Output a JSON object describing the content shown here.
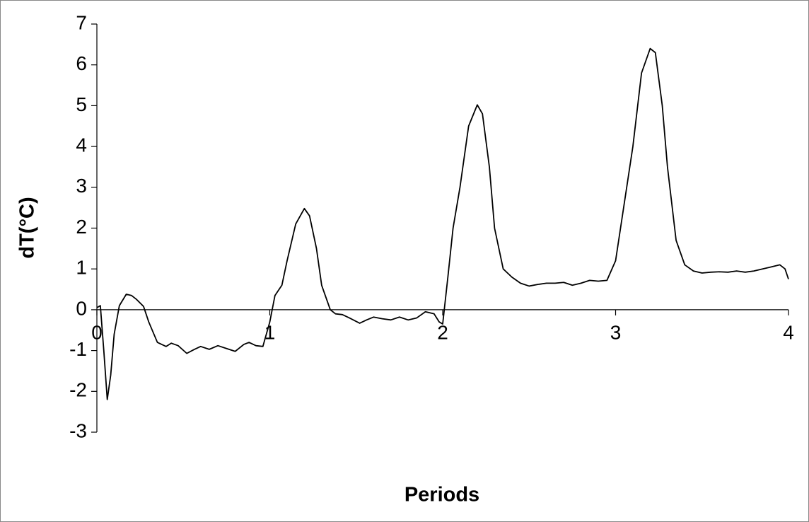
{
  "chart_data": {
    "type": "line",
    "x_label": "Periods",
    "y_label": "dT(°C)",
    "xlim": [
      0,
      4
    ],
    "xticks": [
      0,
      1,
      2,
      3,
      4
    ],
    "ylim": [
      -3,
      7
    ],
    "yticks": [
      -3,
      -2,
      -1,
      0,
      1,
      2,
      3,
      4,
      5,
      6,
      7
    ],
    "grid": false,
    "series": [
      {
        "color": "#000000",
        "x": [
          0,
          0.02,
          0.04,
          0.06,
          0.08,
          0.1,
          0.13,
          0.17,
          0.2,
          0.23,
          0.27,
          0.3,
          0.35,
          0.4,
          0.43,
          0.47,
          0.52,
          0.56,
          0.6,
          0.65,
          0.7,
          0.75,
          0.8,
          0.85,
          0.88,
          0.92,
          0.96,
          1.0,
          1.03,
          1.07,
          1.1,
          1.15,
          1.2,
          1.23,
          1.27,
          1.3,
          1.35,
          1.38,
          1.42,
          1.46,
          1.52,
          1.56,
          1.6,
          1.65,
          1.7,
          1.75,
          1.8,
          1.85,
          1.9,
          1.95,
          1.98,
          2.0,
          2.03,
          2.06,
          2.1,
          2.15,
          2.2,
          2.23,
          2.27,
          2.3,
          2.35,
          2.4,
          2.45,
          2.5,
          2.55,
          2.6,
          2.65,
          2.7,
          2.75,
          2.8,
          2.85,
          2.9,
          2.95,
          3.0,
          3.05,
          3.1,
          3.15,
          3.2,
          3.23,
          3.27,
          3.3,
          3.35,
          3.4,
          3.45,
          3.5,
          3.55,
          3.6,
          3.65,
          3.7,
          3.75,
          3.8,
          3.85,
          3.9,
          3.95,
          3.98,
          4.0
        ],
        "values": [
          0.05,
          0.1,
          -1.0,
          -2.2,
          -1.6,
          -0.6,
          0.1,
          0.38,
          0.35,
          0.25,
          0.08,
          -0.3,
          -0.8,
          -0.9,
          -0.82,
          -0.88,
          -1.07,
          -0.98,
          -0.9,
          -0.97,
          -0.88,
          -0.95,
          -1.02,
          -0.85,
          -0.8,
          -0.88,
          -0.9,
          -0.3,
          0.35,
          0.6,
          1.2,
          2.1,
          2.48,
          2.3,
          1.5,
          0.6,
          0.0,
          -0.1,
          -0.12,
          -0.2,
          -0.33,
          -0.25,
          -0.18,
          -0.22,
          -0.25,
          -0.18,
          -0.25,
          -0.2,
          -0.05,
          -0.1,
          -0.3,
          -0.35,
          0.8,
          2.0,
          3.0,
          4.5,
          5.02,
          4.8,
          3.5,
          2.0,
          1.0,
          0.8,
          0.65,
          0.58,
          0.62,
          0.65,
          0.65,
          0.67,
          0.6,
          0.65,
          0.72,
          0.7,
          0.72,
          1.2,
          2.6,
          4.0,
          5.8,
          6.4,
          6.3,
          5.0,
          3.5,
          1.7,
          1.1,
          0.95,
          0.9,
          0.92,
          0.93,
          0.92,
          0.95,
          0.92,
          0.95,
          1.0,
          1.05,
          1.1,
          1.0,
          0.75
        ]
      }
    ]
  }
}
